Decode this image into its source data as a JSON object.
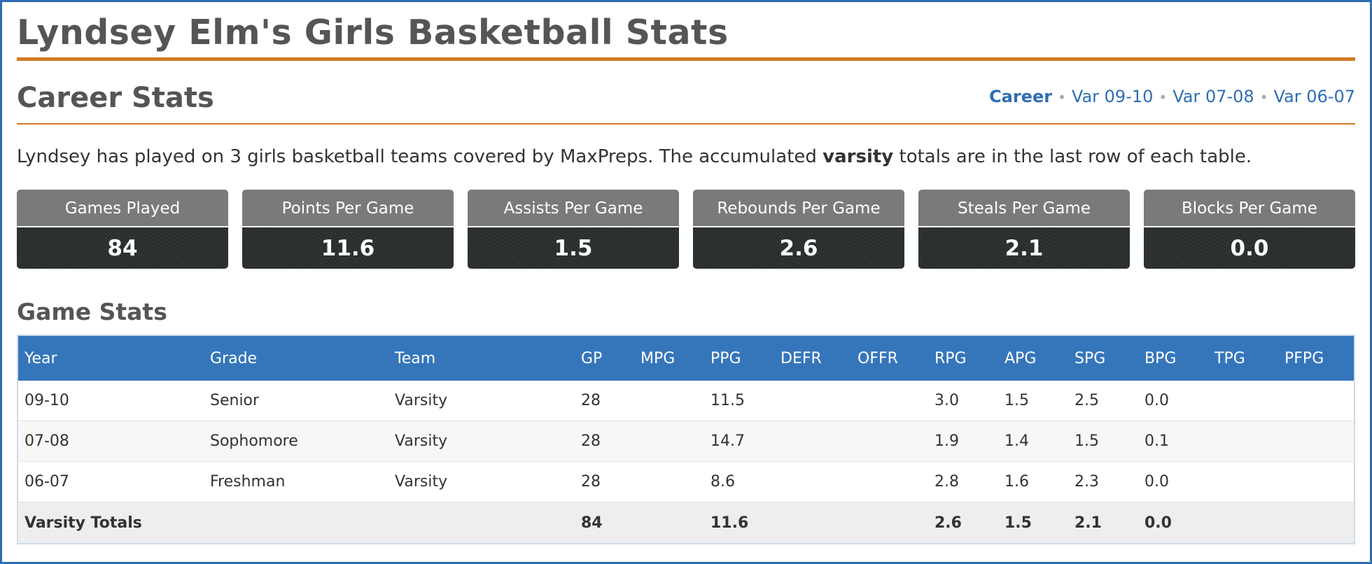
{
  "page_title": "Lyndsey Elm's Girls Basketball Stats",
  "section_title": "Career Stats",
  "season_nav": {
    "items": [
      {
        "label": "Career",
        "active": true
      },
      {
        "label": "Var 09-10",
        "active": false
      },
      {
        "label": "Var 07-08",
        "active": false
      },
      {
        "label": "Var 06-07",
        "active": false
      }
    ],
    "separator": "•"
  },
  "intro": {
    "before": "Lyndsey has played on 3 girls basketball teams covered by MaxPreps. The accumulated ",
    "bold": "varsity",
    "after": " totals are in the last row of each table."
  },
  "summary_stats": [
    {
      "label": "Games Played",
      "value": "84"
    },
    {
      "label": "Points Per Game",
      "value": "11.6"
    },
    {
      "label": "Assists Per Game",
      "value": "1.5"
    },
    {
      "label": "Rebounds Per Game",
      "value": "2.6"
    },
    {
      "label": "Steals Per Game",
      "value": "2.1"
    },
    {
      "label": "Blocks Per Game",
      "value": "0.0"
    }
  ],
  "game_stats": {
    "title": "Game Stats",
    "columns": [
      "Year",
      "Grade",
      "Team",
      "GP",
      "MPG",
      "PPG",
      "DEFR",
      "OFFR",
      "RPG",
      "APG",
      "SPG",
      "BPG",
      "TPG",
      "PFPG"
    ],
    "rows": [
      {
        "year": "09-10",
        "grade": "Senior",
        "team": "Varsity",
        "gp": "28",
        "mpg": "",
        "ppg": "11.5",
        "defr": "",
        "offr": "",
        "rpg": "3.0",
        "apg": "1.5",
        "spg": "2.5",
        "bpg": "0.0",
        "tpg": "",
        "pfpg": ""
      },
      {
        "year": "07-08",
        "grade": "Sophomore",
        "team": "Varsity",
        "gp": "28",
        "mpg": "",
        "ppg": "14.7",
        "defr": "",
        "offr": "",
        "rpg": "1.9",
        "apg": "1.4",
        "spg": "1.5",
        "bpg": "0.1",
        "tpg": "",
        "pfpg": ""
      },
      {
        "year": "06-07",
        "grade": "Freshman",
        "team": "Varsity",
        "gp": "28",
        "mpg": "",
        "ppg": "8.6",
        "defr": "",
        "offr": "",
        "rpg": "2.8",
        "apg": "1.6",
        "spg": "2.3",
        "bpg": "0.0",
        "tpg": "",
        "pfpg": ""
      }
    ],
    "totals": {
      "label": "Varsity Totals",
      "gp": "84",
      "mpg": "",
      "ppg": "11.6",
      "defr": "",
      "offr": "",
      "rpg": "2.6",
      "apg": "1.5",
      "spg": "2.1",
      "bpg": "0.0",
      "tpg": "",
      "pfpg": ""
    }
  },
  "colors": {
    "accent_orange": "#d47a25",
    "link_blue": "#2f6db3",
    "table_header_blue": "#3576bb",
    "stat_label_gray": "#7a7a7a",
    "stat_value_dark": "#2b312d"
  }
}
